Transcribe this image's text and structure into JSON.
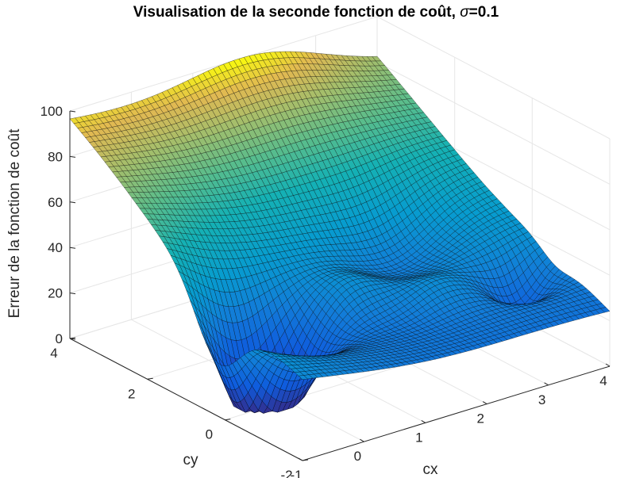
{
  "chart_data": {
    "type": "surface",
    "title": "Visualisation de la seconde fonction de coût, σ=0.1",
    "xlabel": "cx",
    "ylabel": "cy",
    "zlabel": "Erreur de la fonction de coût",
    "xlim": [
      -1,
      4
    ],
    "ylim": [
      -2,
      4
    ],
    "zlim": [
      0,
      100
    ],
    "x_ticks": [
      "-1",
      "0",
      "1",
      "2",
      "3",
      "4"
    ],
    "y_ticks": [
      "-2",
      "0",
      "2",
      "4"
    ],
    "z_ticks": [
      "0",
      "20",
      "40",
      "60",
      "80",
      "100"
    ],
    "grid": true,
    "colormap": "parula",
    "surface_samples": {
      "corners": [
        {
          "cx": -1,
          "cy": -2,
          "z": 38
        },
        {
          "cx": -1,
          "cy": 4,
          "z": 97
        },
        {
          "cx": 4,
          "cy": 4,
          "z": 80
        },
        {
          "cx": 4,
          "cy": -2,
          "z": 25
        }
      ],
      "minima": [
        {
          "cx": -0.3,
          "cy": 0.2,
          "z": 1
        },
        {
          "cx": 3.4,
          "cy": -0.6,
          "z": 17
        }
      ],
      "peak": {
        "cx": 2.0,
        "cy": 4.6,
        "z": 97
      }
    },
    "colors": {
      "grid": "#e6e6e6",
      "axes": "#262626",
      "edge": "#000000"
    }
  }
}
